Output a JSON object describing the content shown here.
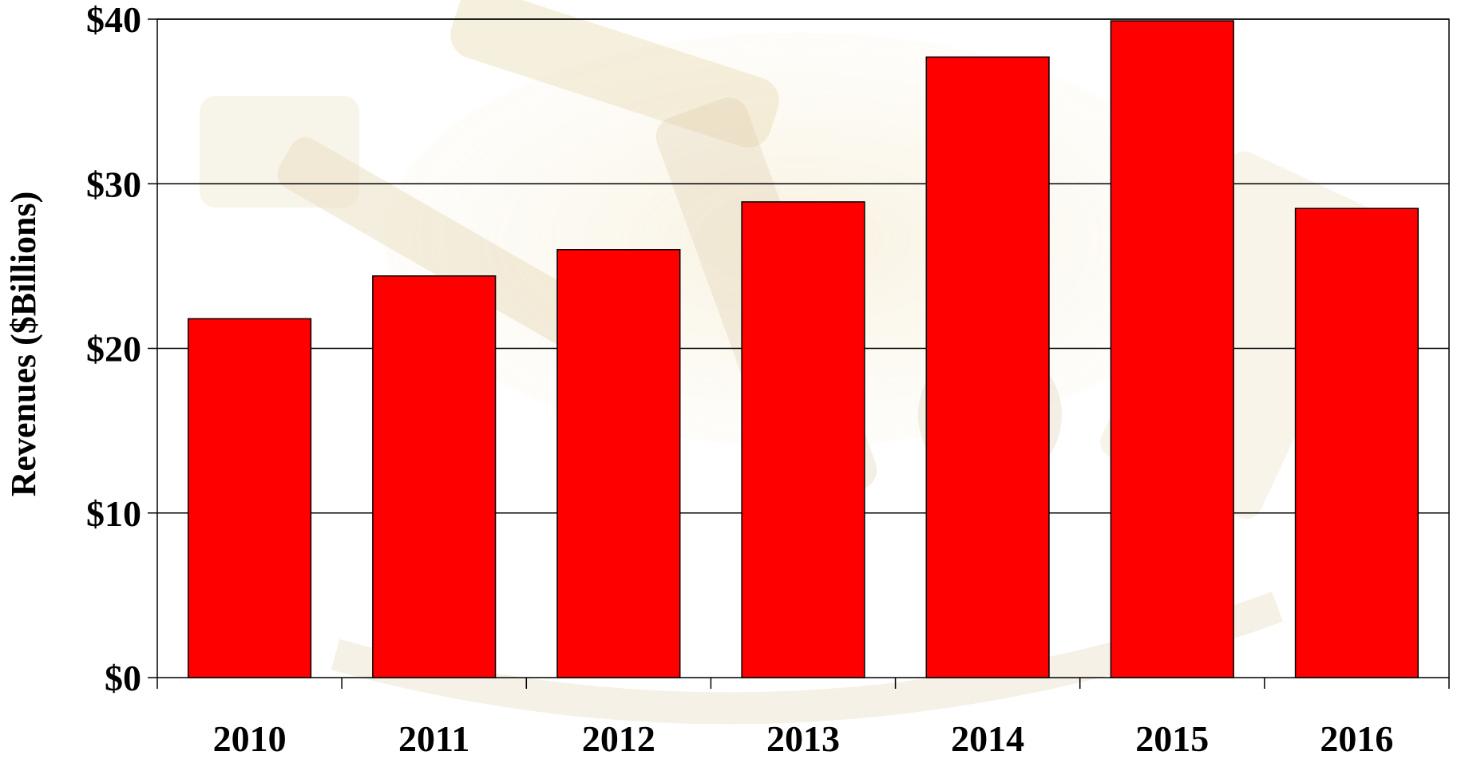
{
  "chart_data": {
    "type": "bar",
    "categories": [
      "2010",
      "2011",
      "2012",
      "2013",
      "2014",
      "2015",
      "2016"
    ],
    "values": [
      21.8,
      24.4,
      26.0,
      28.9,
      37.7,
      39.9,
      28.5
    ],
    "ylabel": "Revenues ($Billions)",
    "xlabel": "",
    "ylim": [
      0,
      40
    ],
    "yticks": [
      0,
      10,
      20,
      30,
      40
    ],
    "ytick_labels": [
      "$0",
      "$10",
      "$20",
      "$30",
      "$40"
    ],
    "grid": true,
    "bar_color": "#ff0000",
    "bar_edge_color": "#000000",
    "background_image": "faded brass sextant watermark"
  }
}
